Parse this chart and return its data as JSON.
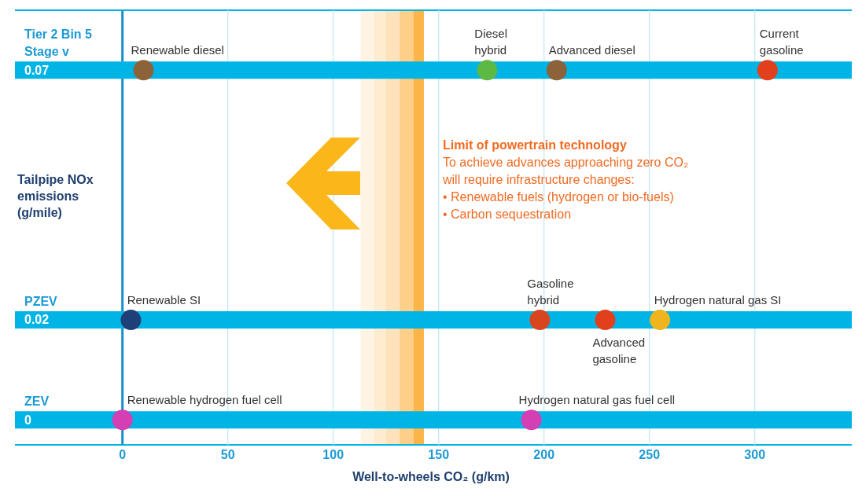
{
  "chart_data": {
    "type": "scatter",
    "xlabel": "Well-to-wheels CO₂ (g/km)",
    "ylabel": "Tailpipe NOx emissions (g/mile)",
    "xlim": [
      -51,
      346
    ],
    "xticks": [
      0,
      50,
      100,
      150,
      200,
      250,
      300
    ],
    "ylim": [
      -0.005,
      0.082
    ],
    "yticks": [
      0,
      0.02,
      0.07
    ],
    "grid": "x",
    "legend": false,
    "marker": "circle",
    "ref_lines": [
      {
        "axis": "x",
        "value": 0,
        "color": "#1a8fc8"
      },
      {
        "axis": "y",
        "value": 0.07,
        "label": "Tier 2 Bin 5 Stage v",
        "color": "#00b4e6"
      },
      {
        "axis": "y",
        "value": 0.02,
        "label": "PZEV",
        "color": "#00b4e6"
      },
      {
        "axis": "y",
        "value": 0,
        "label": "ZEV",
        "color": "#00b4e6"
      }
    ],
    "bands": [
      {
        "axis": "x",
        "from": 113,
        "to": 119.5,
        "color": "#fff3e3"
      },
      {
        "axis": "x",
        "from": 119.5,
        "to": 125,
        "color": "#feebd0"
      },
      {
        "axis": "x",
        "from": 125,
        "to": 131.5,
        "color": "#fde2bb"
      },
      {
        "axis": "x",
        "from": 131.5,
        "to": 138,
        "color": "#fdcf88"
      },
      {
        "axis": "x",
        "from": 138,
        "to": 143,
        "color": "#fbb548"
      }
    ],
    "annotations": [
      "Limit of powertrain technology",
      "To achieve advances approaching zero CO₂ will require infrastructure changes:",
      "• Renewable fuels (hydrogen or bio-fuels)",
      "• Carbon sequestration"
    ],
    "series": [
      {
        "name": "Renewable diesel",
        "color": "#8b6239",
        "x": [
          10
        ],
        "values": [
          0.07
        ]
      },
      {
        "name": "Diesel hybrid",
        "color": "#5cb944",
        "x": [
          173
        ],
        "values": [
          0.07
        ]
      },
      {
        "name": "Advanced diesel",
        "color": "#8b6239",
        "x": [
          206
        ],
        "values": [
          0.07
        ]
      },
      {
        "name": "Current gasoline",
        "color": "#e2401c",
        "x": [
          306
        ],
        "values": [
          0.07
        ]
      },
      {
        "name": "Renewable SI",
        "color": "#1f3f78",
        "x": [
          4
        ],
        "values": [
          0.02
        ]
      },
      {
        "name": "Gasoline hybrid",
        "color": "#d8451e",
        "x": [
          198
        ],
        "values": [
          0.02
        ]
      },
      {
        "name": "Advanced gasoline",
        "color": "#e2401c",
        "x": [
          229
        ],
        "values": [
          0.02
        ]
      },
      {
        "name": "Hydrogen natural gas SI",
        "color": "#f0b41c",
        "x": [
          255
        ],
        "values": [
          0.02
        ]
      },
      {
        "name": "Renewable hydrogen fuel cell",
        "color": "#d43fb4",
        "x": [
          0
        ],
        "values": [
          0
        ]
      },
      {
        "name": "Hydrogen natural gas fuel cell",
        "color": "#d43fb4",
        "x": [
          194
        ],
        "values": [
          0
        ]
      }
    ]
  }
}
